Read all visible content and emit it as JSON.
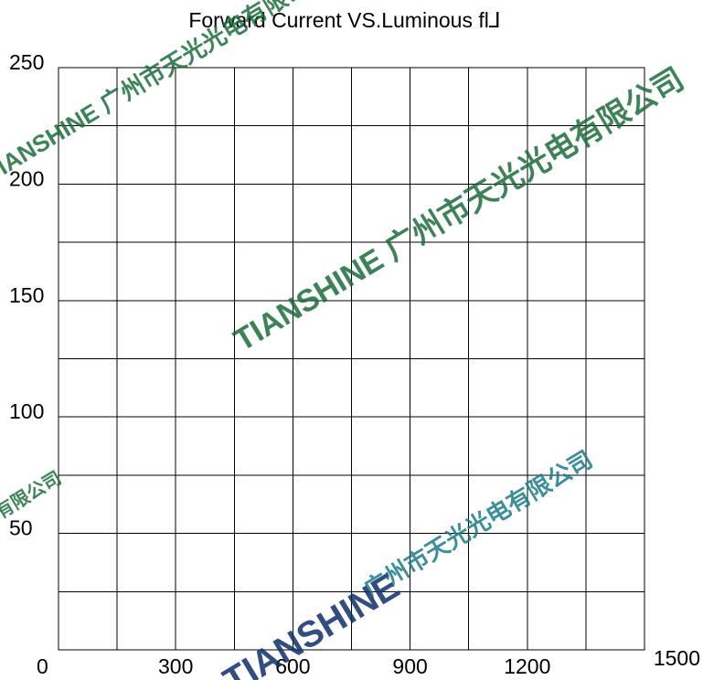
{
  "chart_data": {
    "type": "line",
    "title": "Forward Current VS.Luminous fl⅃",
    "xlabel": "",
    "ylabel": "",
    "xlim": [
      0,
      1500
    ],
    "ylim": [
      0,
      250
    ],
    "x_ticks": [
      "0",
      "300",
      "600",
      "900",
      "1200",
      "1500"
    ],
    "y_ticks": [
      "250",
      "200",
      "150",
      "100",
      "50"
    ],
    "grid": true,
    "x_grid_divisions": 10,
    "y_grid_divisions": 10,
    "series": []
  },
  "watermarks": [
    {
      "text": "TIANSHINE 广州市天光光电有限公司",
      "color": "#1a6b3a"
    },
    {
      "text": "广州市天光光电有限公司",
      "color": "#1a7a8a"
    },
    {
      "text": "TIANSHINE",
      "color": "#0d2f6b"
    }
  ]
}
